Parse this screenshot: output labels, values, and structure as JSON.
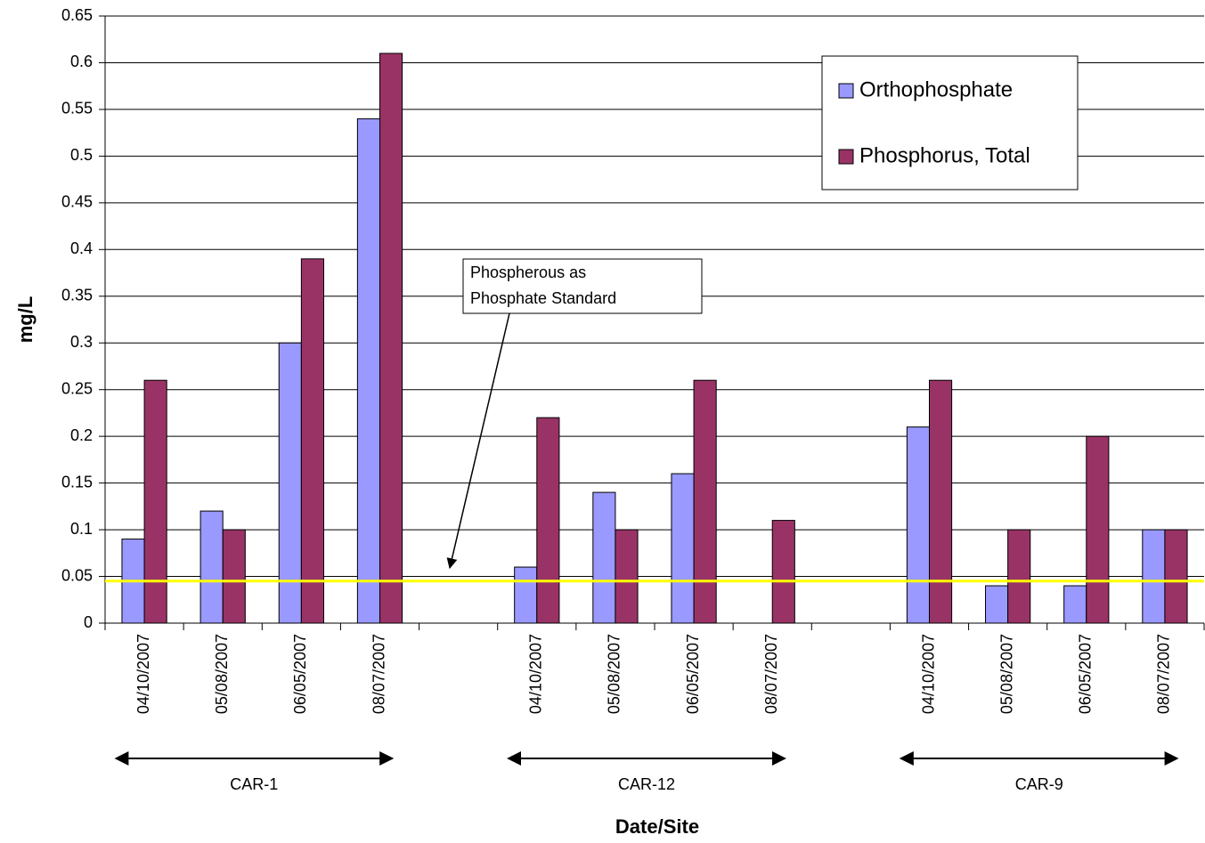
{
  "chart_data": {
    "type": "bar",
    "y_label": "mg/L",
    "x_label": "Date/Site",
    "categories": [
      "04/10/2007",
      "05/08/2007",
      "06/05/2007",
      "08/07/2007",
      null,
      "04/10/2007",
      "05/08/2007",
      "06/05/2007",
      "08/07/2007",
      null,
      "04/10/2007",
      "05/08/2007",
      "06/05/2007",
      "08/07/2007"
    ],
    "groups": [
      "CAR-1",
      "CAR-12",
      "CAR-9"
    ],
    "series": [
      {
        "name": "Orthophosphate",
        "color": "#9999ff",
        "values": [
          0.09,
          0.12,
          0.3,
          0.54,
          null,
          0.06,
          0.14,
          0.16,
          null,
          null,
          0.21,
          0.04,
          0.04,
          0.1
        ]
      },
      {
        "name": "Phosphorus, Total",
        "color": "#993366",
        "values": [
          0.26,
          0.1,
          0.39,
          0.61,
          null,
          0.22,
          0.1,
          0.26,
          0.11,
          null,
          0.26,
          0.1,
          0.2,
          0.1
        ]
      }
    ],
    "standard_line": {
      "value": 0.045,
      "color": "#ffff00"
    },
    "annotation": [
      "Phospherous as",
      "Phosphate Standard"
    ],
    "ylim": [
      0,
      0.65
    ],
    "yticks": [
      0,
      0.05,
      0.1,
      0.15,
      0.2,
      0.25,
      0.3,
      0.35,
      0.4,
      0.45,
      0.5,
      0.55,
      0.6,
      0.65
    ],
    "grid": true
  }
}
